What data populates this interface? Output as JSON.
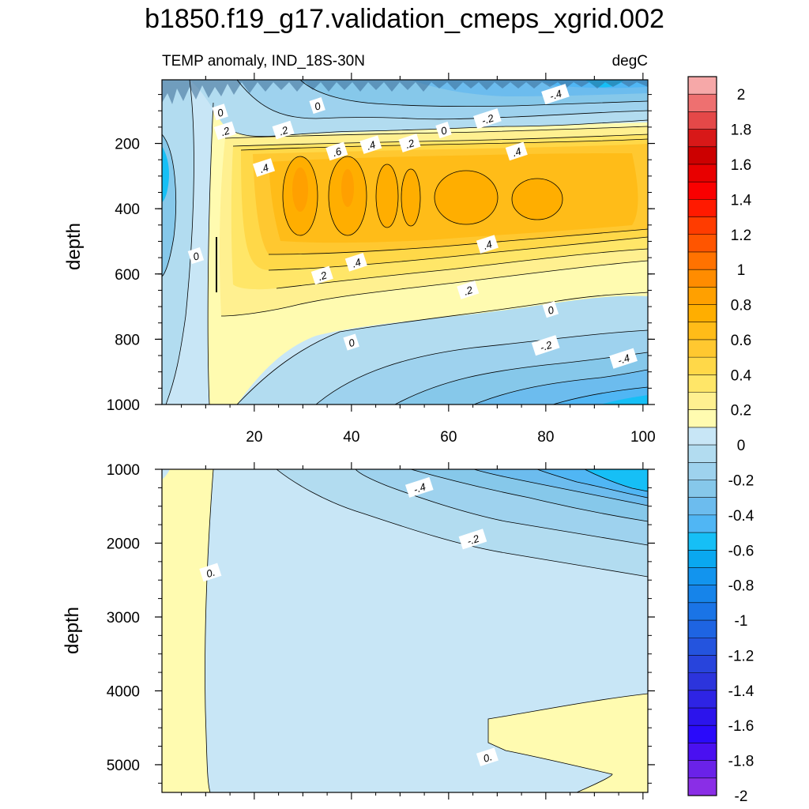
{
  "title": "b1850.f19_g17.validation_cmeps_xgrid.002",
  "chart_data": [
    {
      "type": "heatmap",
      "panel": "upper",
      "left_label": "TEMP anomaly, IND_18S-30N",
      "right_label": "degC",
      "ylabel": "depth",
      "xlabel": "",
      "xlim": [
        1,
        101
      ],
      "ylim": [
        1000,
        5
      ],
      "xticks": [
        20,
        40,
        60,
        80,
        100
      ],
      "yticks": [
        200,
        400,
        600,
        800,
        1000
      ],
      "contour_interval": 0.05,
      "contour_labels": [
        {
          "text": "0",
          "x": 13,
          "y": 105
        },
        {
          "text": "0",
          "x": 33,
          "y": 85
        },
        {
          "text": "-.4",
          "x": 82,
          "y": 50
        },
        {
          "text": ".2",
          "x": 14,
          "y": 162
        },
        {
          "text": ".2",
          "x": 26,
          "y": 160
        },
        {
          "text": "-.2",
          "x": 68,
          "y": 125
        },
        {
          "text": "0",
          "x": 59,
          "y": 160
        },
        {
          "text": ".2",
          "x": 52,
          "y": 200
        },
        {
          "text": ".4",
          "x": 44,
          "y": 205
        },
        {
          "text": ".6",
          "x": 37,
          "y": 225
        },
        {
          "text": ".4",
          "x": 74,
          "y": 225
        },
        {
          "text": ".4",
          "x": 22,
          "y": 275
        },
        {
          "text": ".4",
          "x": 68,
          "y": 510
        },
        {
          "text": "0",
          "x": 8,
          "y": 545
        },
        {
          "text": ".4",
          "x": 41,
          "y": 565
        },
        {
          "text": ".2",
          "x": 34,
          "y": 605
        },
        {
          "text": ".2",
          "x": 64,
          "y": 650
        },
        {
          "text": "0",
          "x": 81,
          "y": 710
        },
        {
          "text": "0",
          "x": 40,
          "y": 810
        },
        {
          "text": "-.2",
          "x": 80,
          "y": 820
        },
        {
          "text": "-.4",
          "x": 96,
          "y": 860
        }
      ]
    },
    {
      "type": "heatmap",
      "panel": "lower",
      "ylabel": "depth",
      "xlim": [
        1,
        101
      ],
      "ylim": [
        5375,
        1000
      ],
      "yticks": [
        1000,
        2000,
        3000,
        4000,
        5000
      ],
      "contour_labels": [
        {
          "text": "-.4",
          "x": 54,
          "y": 1250
        },
        {
          "text": "-.2",
          "x": 65,
          "y": 1950
        },
        {
          "text": "0.",
          "x": 11,
          "y": 2400
        },
        {
          "text": "0.",
          "x": 68,
          "y": 4900
        }
      ]
    }
  ],
  "colorbar": {
    "levels": [
      "2",
      "1.8",
      "1.6",
      "1.4",
      "1.2",
      "1",
      "0.8",
      "0.6",
      "0.4",
      "0.2",
      "0",
      "-0.2",
      "-0.4",
      "-0.6",
      "-0.8",
      "-1",
      "-1.2",
      "-1.4",
      "-1.6",
      "-1.8",
      "-2"
    ],
    "colors": [
      "#f6a8a8",
      "#ee7070",
      "#e44848",
      "#d81818",
      "#cc0000",
      "#e80000",
      "#fa0000",
      "#ff1a00",
      "#ff3c00",
      "#ff5500",
      "#ff7200",
      "#ff8c00",
      "#ffa000",
      "#ffae00",
      "#ffbc18",
      "#ffc830",
      "#ffd848",
      "#ffe668",
      "#fff090",
      "#fffbb0",
      "#c8e6f6",
      "#b2dcf0",
      "#9ed2ee",
      "#86c8ea",
      "#6cbcee",
      "#50b6f4",
      "#16bff6",
      "#0aa8f0",
      "#1294ee",
      "#1684ea",
      "#1a74e6",
      "#1e64e2",
      "#2454de",
      "#2844dc",
      "#2c34dc",
      "#2e24e4",
      "#2c14ec",
      "#2a0afa",
      "#4a10f0",
      "#6a22e8",
      "#8a2ee6"
    ]
  }
}
